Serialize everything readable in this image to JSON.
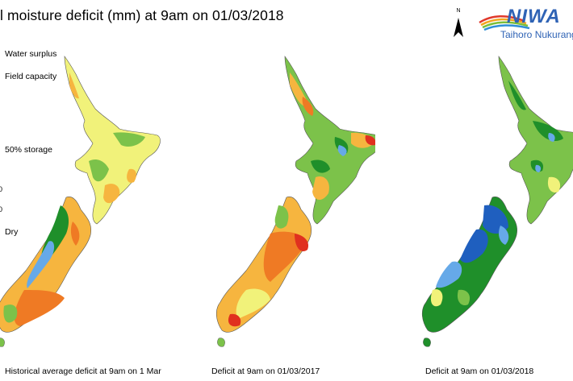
{
  "title": "il moisture deficit (mm) at  9am on 01/03/2018",
  "legend": {
    "labels": [
      "Water surplus",
      "Field capacity",
      "50% storage",
      "Dry"
    ],
    "ticks": [
      "0",
      "0"
    ]
  },
  "north_arrow": {
    "letter": "N"
  },
  "logo": {
    "name": "NIWA",
    "subtitle": "Taihoro Nukurang"
  },
  "panels": [
    {
      "caption": "Historical average deficit at  9am on 1 Mar",
      "palette": "historical"
    },
    {
      "caption": "Deficit at  9am on 01/03/2017",
      "palette": "y2017"
    },
    {
      "caption": "Deficit at  9am on 01/03/2018",
      "palette": "y2018"
    }
  ],
  "colors": {
    "surplus": "#1f5fbf",
    "wet": "#66a9e8",
    "field_capacity": "#1f8f2a",
    "moist": "#7cc24a",
    "storage50": "#f1f27a",
    "dryish": "#f6b53f",
    "dry": "#ef7a24",
    "very_dry": "#e0301f"
  }
}
